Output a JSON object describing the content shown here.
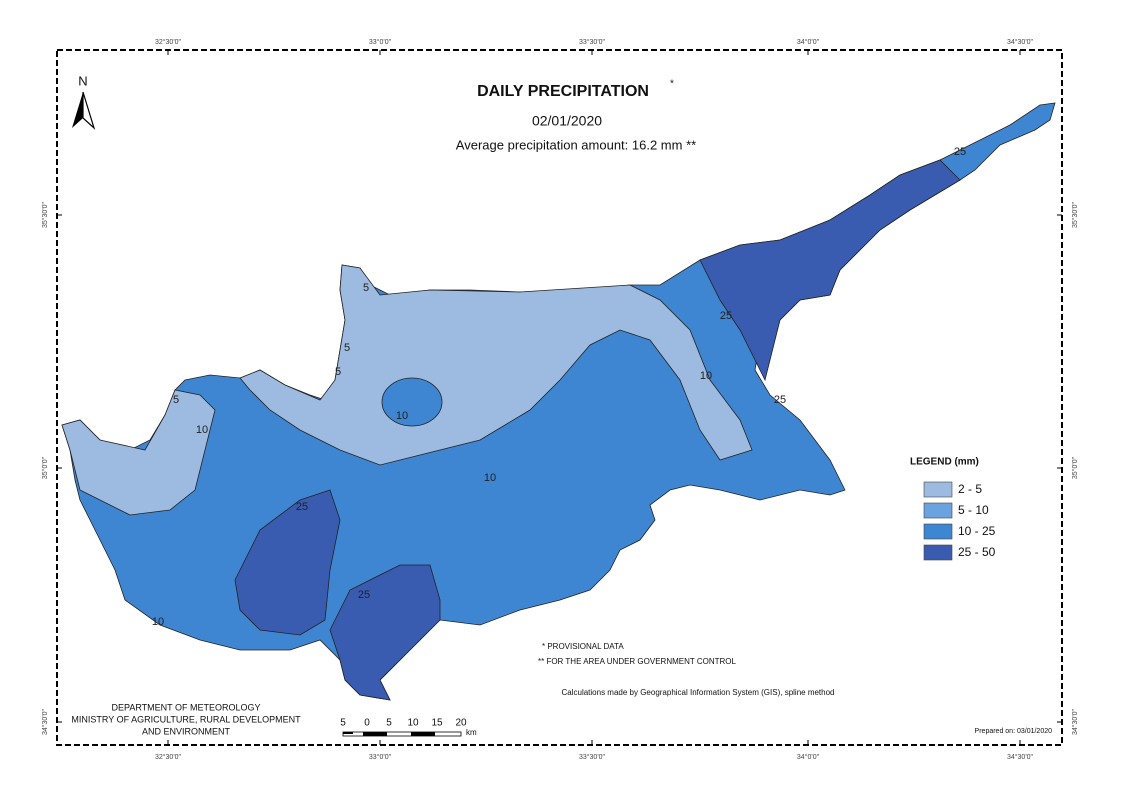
{
  "map": {
    "title": "DAILY PRECIPITATION",
    "title_mark": "*",
    "date": "02/01/2020",
    "subtitle": "Average precipitation amount: 16.2 mm **",
    "north": "N",
    "lon_labels": [
      "32°30'0\"",
      "33°0'0\"",
      "33°30'0\"",
      "34°0'0\"",
      "34°30'0\""
    ],
    "lat_labels": [
      "35°30'0\"",
      "35°0'0\"",
      "34°30'0\""
    ],
    "legend": {
      "title": "LEGEND (mm)",
      "items": [
        {
          "label": "2 - 5",
          "color": "#9dbbe0"
        },
        {
          "label": "5 - 10",
          "color": "#6aa3e0"
        },
        {
          "label": "10 - 25",
          "color": "#3f86d2"
        },
        {
          "label": "25 - 50",
          "color": "#3a5cb0"
        }
      ]
    },
    "contour_labels": [
      "5",
      "5",
      "5",
      "5",
      "10",
      "10",
      "10",
      "10",
      "10",
      "25",
      "25",
      "25",
      "25",
      "25"
    ],
    "notes": [
      "* PROVISIONAL DATA",
      "** FOR THE AREA UNDER GOVERNMENT CONTROL"
    ],
    "method": "Calculations made by Geographical Information System (GIS), spline method",
    "department": [
      "DEPARTMENT OF METEOROLOGY",
      "MINISTRY OF AGRICULTURE, RURAL DEVELOPMENT",
      "AND ENVIRONMENT"
    ],
    "scale_labels": [
      "5",
      "0",
      "5",
      "10",
      "15",
      "20"
    ],
    "scale_unit": "km",
    "prepared": "Prepared on: 03/01/2020"
  }
}
